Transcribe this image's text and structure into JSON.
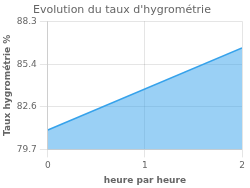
{
  "chart_data": {
    "type": "area",
    "title": "Evolution du taux d'hygrométrie",
    "xlabel": "heure par heure",
    "ylabel": "Taux hygrométrie %",
    "x": [
      0,
      2
    ],
    "values": [
      81.0,
      86.5
    ],
    "xlim": [
      0,
      2
    ],
    "ylim": [
      79.7,
      88.3
    ],
    "xticks": [
      0,
      1,
      2
    ],
    "yticks": [
      79.7,
      82.6,
      85.4,
      88.3
    ],
    "grid": true
  }
}
